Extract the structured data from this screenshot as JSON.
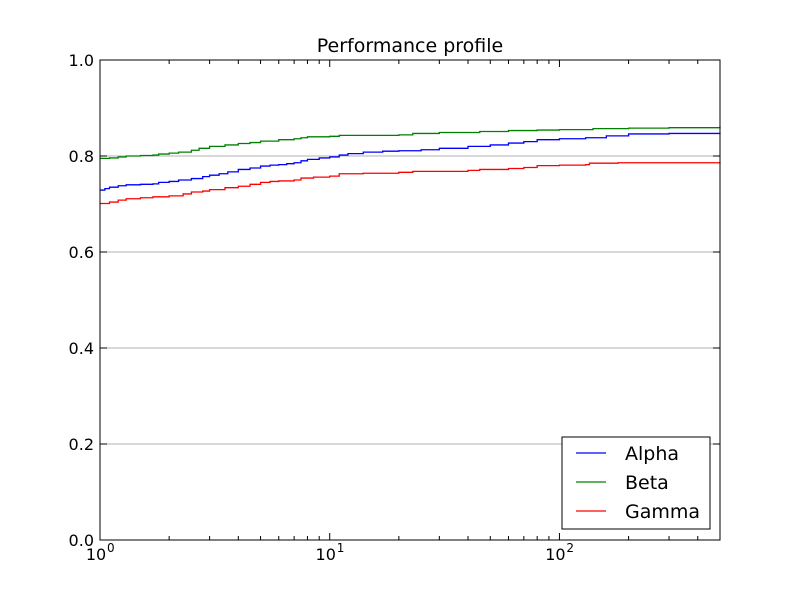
{
  "chart_data": {
    "type": "line",
    "title": "Performance profile",
    "xlabel": "",
    "ylabel": "",
    "xscale": "log",
    "xlim": [
      1,
      500
    ],
    "ylim": [
      0,
      1
    ],
    "grid": "horizontal",
    "legend_position": "bottom-right",
    "x_ticks": [
      {
        "value": 1,
        "base": "10",
        "exponent": "0"
      },
      {
        "value": 10,
        "base": "10",
        "exponent": "1"
      },
      {
        "value": 100,
        "base": "10",
        "exponent": "2"
      }
    ],
    "y_ticks": [
      {
        "value": 0,
        "label": "0.0"
      },
      {
        "value": 0.2,
        "label": "0.2"
      },
      {
        "value": 0.4,
        "label": "0.4"
      },
      {
        "value": 0.6,
        "label": "0.6"
      },
      {
        "value": 0.8,
        "label": "0.8"
      },
      {
        "value": 1.0,
        "label": "1.0"
      }
    ],
    "series": [
      {
        "name": "Alpha",
        "color": "#0000ff",
        "points": [
          [
            1,
            0.729
          ],
          [
            1.05,
            0.732
          ],
          [
            1.1,
            0.735
          ],
          [
            1.2,
            0.738
          ],
          [
            1.3,
            0.74
          ],
          [
            1.5,
            0.741
          ],
          [
            1.7,
            0.742
          ],
          [
            1.8,
            0.745
          ],
          [
            2.0,
            0.747
          ],
          [
            2.2,
            0.75
          ],
          [
            2.5,
            0.753
          ],
          [
            2.8,
            0.757
          ],
          [
            3.0,
            0.76
          ],
          [
            3.3,
            0.763
          ],
          [
            3.6,
            0.767
          ],
          [
            4.0,
            0.772
          ],
          [
            4.5,
            0.775
          ],
          [
            5.0,
            0.779
          ],
          [
            5.5,
            0.781
          ],
          [
            6.0,
            0.782
          ],
          [
            6.5,
            0.784
          ],
          [
            7.0,
            0.786
          ],
          [
            7.5,
            0.79
          ],
          [
            8.0,
            0.793
          ],
          [
            9.0,
            0.796
          ],
          [
            10,
            0.798
          ],
          [
            11,
            0.802
          ],
          [
            12,
            0.805
          ],
          [
            14,
            0.808
          ],
          [
            17,
            0.81
          ],
          [
            20,
            0.811
          ],
          [
            25,
            0.813
          ],
          [
            30,
            0.816
          ],
          [
            40,
            0.82
          ],
          [
            50,
            0.823
          ],
          [
            60,
            0.827
          ],
          [
            70,
            0.83
          ],
          [
            80,
            0.834
          ],
          [
            100,
            0.836
          ],
          [
            130,
            0.838
          ],
          [
            160,
            0.842
          ],
          [
            200,
            0.846
          ],
          [
            300,
            0.847
          ],
          [
            500,
            0.848
          ]
        ]
      },
      {
        "name": "Beta",
        "color": "#008000",
        "points": [
          [
            1,
            0.795
          ],
          [
            1.1,
            0.796
          ],
          [
            1.2,
            0.798
          ],
          [
            1.3,
            0.8
          ],
          [
            1.5,
            0.801
          ],
          [
            1.7,
            0.802
          ],
          [
            1.8,
            0.804
          ],
          [
            2.0,
            0.806
          ],
          [
            2.2,
            0.808
          ],
          [
            2.5,
            0.812
          ],
          [
            2.7,
            0.816
          ],
          [
            3.0,
            0.82
          ],
          [
            3.5,
            0.823
          ],
          [
            4.0,
            0.826
          ],
          [
            4.5,
            0.828
          ],
          [
            5.0,
            0.831
          ],
          [
            6.0,
            0.834
          ],
          [
            7.0,
            0.836
          ],
          [
            7.5,
            0.838
          ],
          [
            8.0,
            0.84
          ],
          [
            10,
            0.841
          ],
          [
            11,
            0.843
          ],
          [
            15,
            0.843
          ],
          [
            20,
            0.844
          ],
          [
            23,
            0.847
          ],
          [
            30,
            0.849
          ],
          [
            45,
            0.851
          ],
          [
            60,
            0.853
          ],
          [
            80,
            0.854
          ],
          [
            100,
            0.855
          ],
          [
            140,
            0.857
          ],
          [
            200,
            0.858
          ],
          [
            300,
            0.859
          ],
          [
            500,
            0.861
          ]
        ]
      },
      {
        "name": "Gamma",
        "color": "#ff0000",
        "points": [
          [
            1,
            0.701
          ],
          [
            1.1,
            0.704
          ],
          [
            1.2,
            0.708
          ],
          [
            1.3,
            0.711
          ],
          [
            1.5,
            0.713
          ],
          [
            1.7,
            0.715
          ],
          [
            2.0,
            0.717
          ],
          [
            2.3,
            0.721
          ],
          [
            2.5,
            0.725
          ],
          [
            2.8,
            0.727
          ],
          [
            3.0,
            0.73
          ],
          [
            3.5,
            0.734
          ],
          [
            4.0,
            0.737
          ],
          [
            4.5,
            0.741
          ],
          [
            5.0,
            0.745
          ],
          [
            5.5,
            0.747
          ],
          [
            6.0,
            0.748
          ],
          [
            7.0,
            0.75
          ],
          [
            7.5,
            0.754
          ],
          [
            8.5,
            0.756
          ],
          [
            10,
            0.758
          ],
          [
            11,
            0.763
          ],
          [
            14,
            0.764
          ],
          [
            20,
            0.766
          ],
          [
            23,
            0.768
          ],
          [
            40,
            0.77
          ],
          [
            45,
            0.772
          ],
          [
            60,
            0.774
          ],
          [
            70,
            0.776
          ],
          [
            80,
            0.78
          ],
          [
            100,
            0.781
          ],
          [
            130,
            0.782
          ],
          [
            135,
            0.785
          ],
          [
            180,
            0.786
          ],
          [
            500,
            0.787
          ]
        ]
      }
    ]
  }
}
